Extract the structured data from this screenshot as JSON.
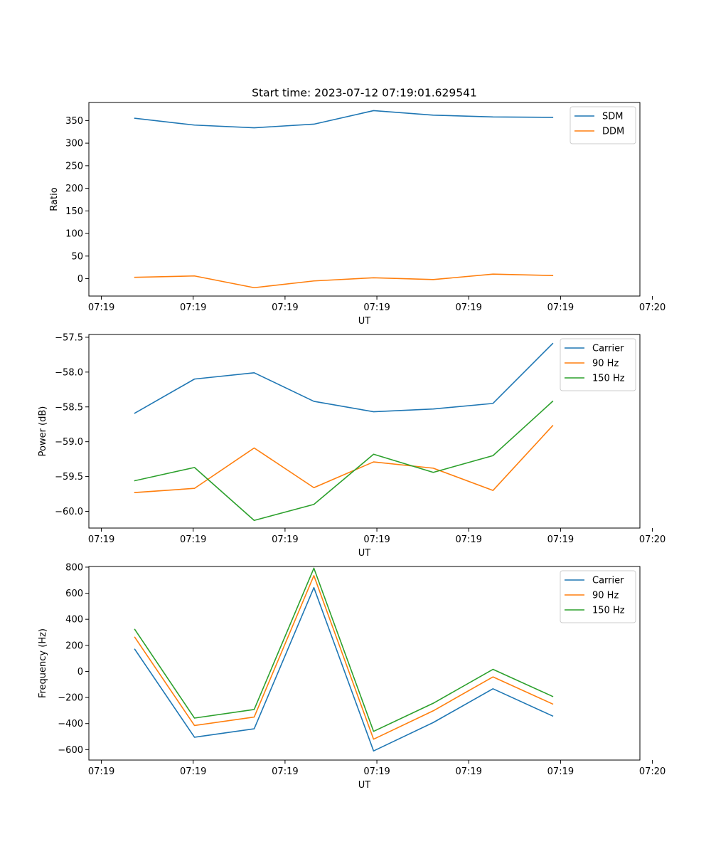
{
  "figure": {
    "title": "Start time: 2023-07-12 07:19:01.629541"
  },
  "chart_data": [
    {
      "type": "line",
      "name": "ratio",
      "title": "Start time: 2023-07-12 07:19:01.629541",
      "xlabel": "UT",
      "ylabel": "Ratio",
      "xlim": [
        -0.5,
        5.5
      ],
      "ylim": [
        -38.5,
        390
      ],
      "x_ticks": [
        {
          "x": -0.364,
          "label": "07:19"
        },
        {
          "x": 0.636,
          "label": "07:19"
        },
        {
          "x": 1.636,
          "label": "07:19"
        },
        {
          "x": 2.636,
          "label": "07:19"
        },
        {
          "x": 3.636,
          "label": "07:19"
        },
        {
          "x": 4.636,
          "label": "07:19"
        },
        {
          "x": 5.636,
          "label": "07:20"
        }
      ],
      "y_ticks": [
        0,
        50,
        100,
        150,
        200,
        250,
        300,
        350
      ],
      "x": [
        0,
        0.65,
        1.3,
        1.95,
        2.6,
        3.25,
        3.9,
        4.55
      ],
      "series": [
        {
          "name": "SDM",
          "color": "#1f77b4",
          "values": [
            355,
            340,
            334,
            342,
            372,
            362,
            358,
            357
          ]
        },
        {
          "name": "DDM",
          "color": "#ff7f0e",
          "values": [
            3,
            6,
            -20,
            -5,
            2,
            -2,
            10,
            7
          ]
        }
      ],
      "legend": "upper-right"
    },
    {
      "type": "line",
      "name": "power",
      "xlabel": "UT",
      "ylabel": "Power (dB)",
      "xlim": [
        -0.5,
        5.5
      ],
      "ylim": [
        -60.24,
        -57.46
      ],
      "x_ticks": [
        {
          "x": -0.364,
          "label": "07:19"
        },
        {
          "x": 0.636,
          "label": "07:19"
        },
        {
          "x": 1.636,
          "label": "07:19"
        },
        {
          "x": 2.636,
          "label": "07:19"
        },
        {
          "x": 3.636,
          "label": "07:19"
        },
        {
          "x": 4.636,
          "label": "07:19"
        },
        {
          "x": 5.636,
          "label": "07:20"
        }
      ],
      "y_ticks": [
        -60.0,
        -59.5,
        -59.0,
        -58.5,
        -58.0,
        -57.5
      ],
      "y_tick_labels": [
        "−60.0",
        "−59.5",
        "−59.0",
        "−58.5",
        "−58.0",
        "−57.5"
      ],
      "x": [
        0,
        0.65,
        1.3,
        1.95,
        2.6,
        3.25,
        3.9,
        4.55
      ],
      "series": [
        {
          "name": "Carrier",
          "color": "#1f77b4",
          "values": [
            -58.59,
            -58.1,
            -58.01,
            -58.42,
            -58.57,
            -58.53,
            -58.45,
            -57.59
          ]
        },
        {
          "name": "90 Hz",
          "color": "#ff7f0e",
          "values": [
            -59.73,
            -59.67,
            -59.09,
            -59.66,
            -59.29,
            -59.38,
            -59.7,
            -58.77
          ]
        },
        {
          "name": "150 Hz",
          "color": "#2ca02c",
          "values": [
            -59.56,
            -59.37,
            -60.13,
            -59.9,
            -59.18,
            -59.44,
            -59.2,
            -58.42
          ]
        }
      ],
      "legend": "upper-right"
    },
    {
      "type": "line",
      "name": "frequency",
      "xlabel": "UT",
      "ylabel": "Frequency (Hz)",
      "xlim": [
        -0.5,
        5.5
      ],
      "ylim": [
        -680,
        805
      ],
      "x_ticks": [
        {
          "x": -0.364,
          "label": "07:19"
        },
        {
          "x": 0.636,
          "label": "07:19"
        },
        {
          "x": 1.636,
          "label": "07:19"
        },
        {
          "x": 2.636,
          "label": "07:19"
        },
        {
          "x": 3.636,
          "label": "07:19"
        },
        {
          "x": 4.636,
          "label": "07:19"
        },
        {
          "x": 5.636,
          "label": "07:20"
        }
      ],
      "y_ticks": [
        -600,
        -400,
        -200,
        0,
        200,
        400,
        600,
        800
      ],
      "y_tick_labels": [
        "−600",
        "−400",
        "−200",
        "0",
        "200",
        "400",
        "600",
        "800"
      ],
      "x": [
        0,
        0.65,
        1.3,
        1.95,
        2.6,
        3.25,
        3.9,
        4.55
      ],
      "series": [
        {
          "name": "Carrier",
          "color": "#1f77b4",
          "values": [
            170,
            -505,
            -440,
            643,
            -610,
            -392,
            -133,
            -342
          ]
        },
        {
          "name": "90 Hz",
          "color": "#ff7f0e",
          "values": [
            262,
            -415,
            -350,
            735,
            -520,
            -302,
            -42,
            -250
          ]
        },
        {
          "name": "150 Hz",
          "color": "#2ca02c",
          "values": [
            322,
            -358,
            -292,
            792,
            -460,
            -244,
            16,
            -192
          ]
        }
      ],
      "legend": "upper-right"
    }
  ]
}
